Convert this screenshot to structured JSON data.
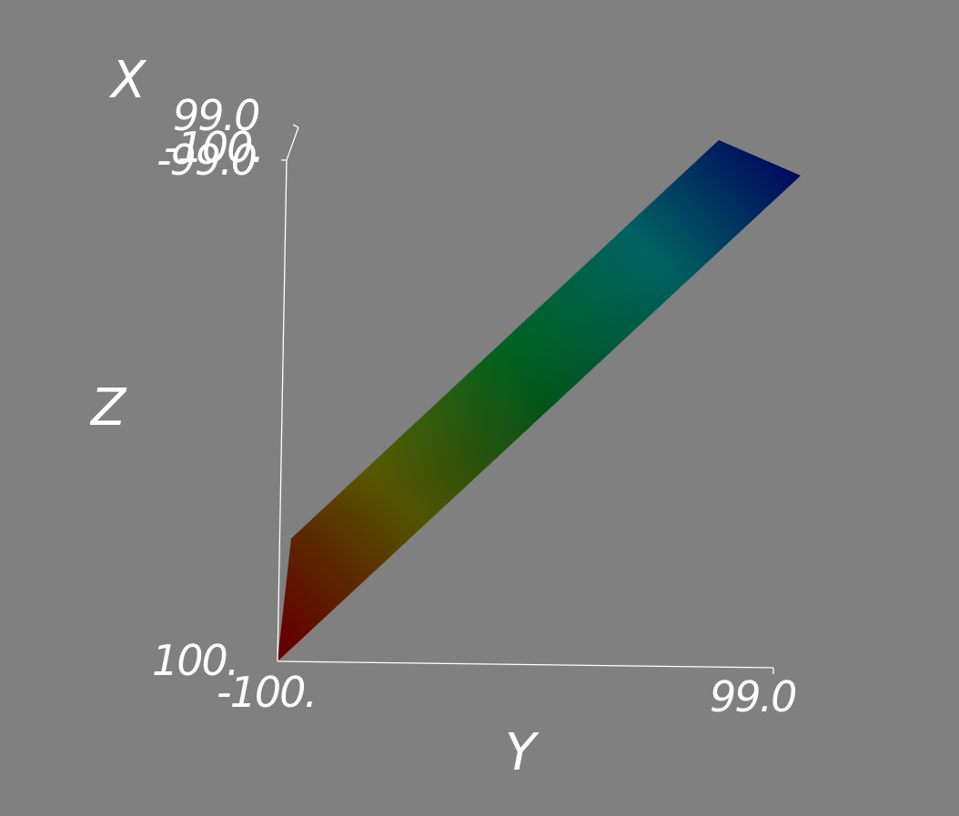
{
  "scene": {
    "background": "#808080",
    "axis_color": "#ffffff",
    "axes": {
      "x": {
        "title": "X",
        "ticks": [
          "99.0",
          "-100."
        ]
      },
      "y": {
        "title": "Y",
        "ticks": [
          "-100.",
          "99.0"
        ]
      },
      "z": {
        "title": "Z",
        "ticks": [
          "-99.0",
          "100."
        ]
      }
    },
    "surface": {
      "colormap": [
        "#800000",
        "#6a6a00",
        "#006a20",
        "#006a6a",
        "#000066"
      ]
    }
  }
}
